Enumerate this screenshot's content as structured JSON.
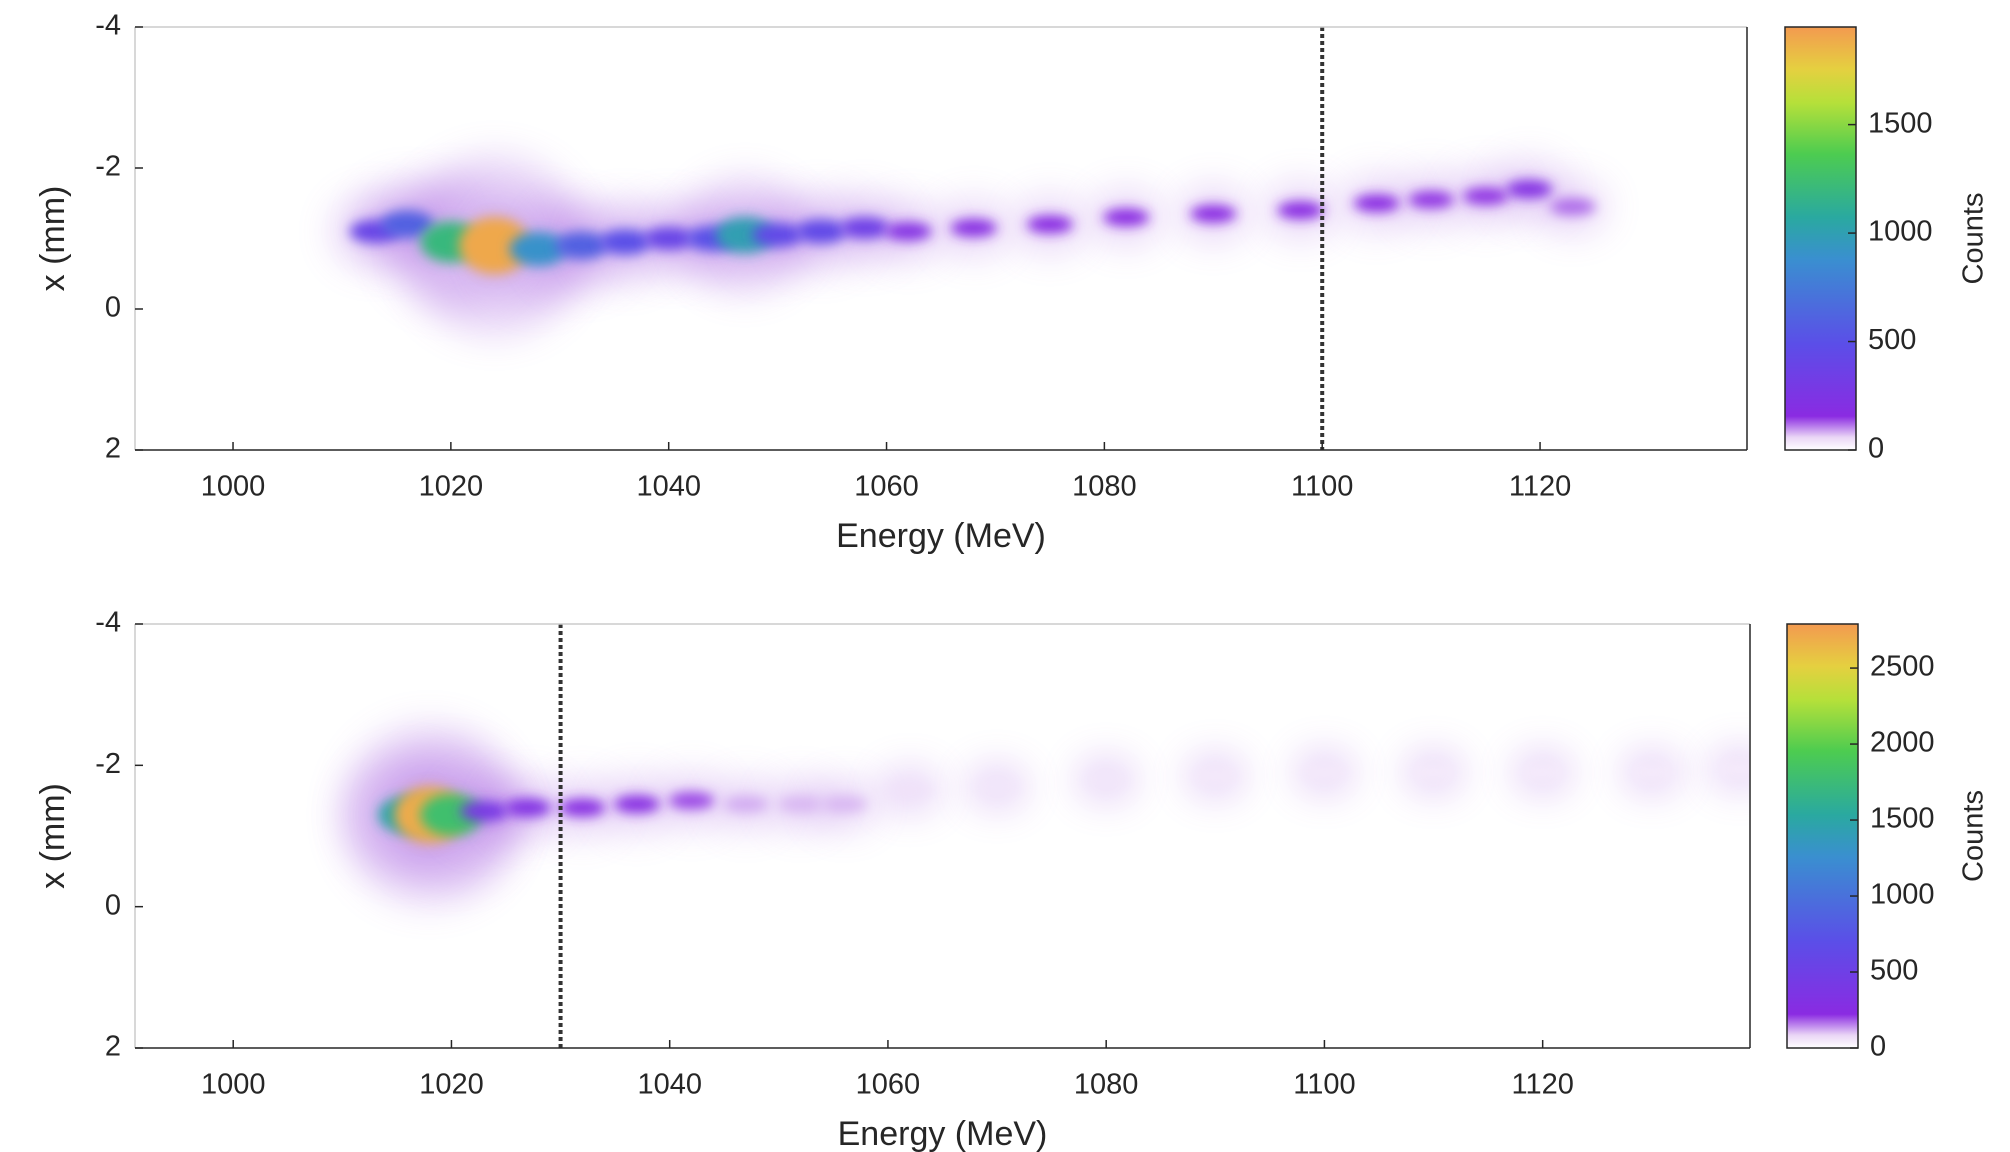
{
  "chart_data": [
    {
      "type": "heatmap",
      "xlabel": "Energy (MeV)",
      "ylabel": "x (mm)",
      "xlim": [
        991,
        1139
      ],
      "ylim": [
        2,
        -4
      ],
      "xticks": [
        1000,
        1020,
        1040,
        1060,
        1080,
        1100,
        1120
      ],
      "yticks": [
        -4,
        -2,
        0,
        2
      ],
      "vline": 1100,
      "x": [
        1013,
        1016,
        1020,
        1024,
        1028,
        1032,
        1036,
        1040,
        1044,
        1047,
        1050,
        1054,
        1058,
        1062,
        1068,
        1075,
        1082,
        1090,
        1098,
        1105,
        1110,
        1115,
        1119,
        1123
      ],
      "y": [
        -1.1,
        -1.2,
        -0.95,
        -0.9,
        -0.85,
        -0.9,
        -0.95,
        -1.0,
        -1.0,
        -1.05,
        -1.05,
        -1.1,
        -1.15,
        -1.1,
        -1.15,
        -1.2,
        -1.3,
        -1.35,
        -1.4,
        -1.5,
        -1.55,
        -1.6,
        -1.7,
        -1.45
      ],
      "values": [
        400,
        600,
        1200,
        1900,
        900,
        600,
        500,
        400,
        500,
        1000,
        450,
        450,
        350,
        200,
        180,
        170,
        160,
        160,
        170,
        160,
        150,
        150,
        200,
        120
      ],
      "colorbar": {
        "label": "Counts",
        "lim": [
          0,
          1950
        ],
        "ticks": [
          0,
          500,
          1000,
          1500
        ]
      }
    },
    {
      "type": "heatmap",
      "xlabel": "Energy (MeV)",
      "ylabel": "x (mm)",
      "xlim": [
        991,
        1139
      ],
      "ylim": [
        2,
        -4
      ],
      "xticks": [
        1000,
        1020,
        1040,
        1060,
        1080,
        1100,
        1120
      ],
      "yticks": [
        -4,
        -2,
        0,
        2
      ],
      "vline": 1030,
      "x": [
        1016,
        1018,
        1020,
        1023,
        1027,
        1032,
        1037,
        1042,
        1047,
        1052,
        1056,
        1062,
        1070,
        1080,
        1090,
        1100,
        1110,
        1120,
        1130,
        1138
      ],
      "y": [
        -1.3,
        -1.3,
        -1.3,
        -1.35,
        -1.4,
        -1.4,
        -1.45,
        -1.5,
        -1.45,
        -1.45,
        -1.45,
        -1.65,
        -1.7,
        -1.8,
        -1.85,
        -1.9,
        -1.9,
        -1.9,
        -1.9,
        -1.95
      ],
      "values": [
        1500,
        2700,
        1800,
        400,
        300,
        250,
        250,
        200,
        120,
        110,
        110,
        60,
        50,
        50,
        45,
        45,
        40,
        40,
        40,
        40
      ],
      "colorbar": {
        "label": "Counts",
        "lim": [
          0,
          2790
        ],
        "ticks": [
          0,
          500,
          1000,
          1500,
          2000,
          2500
        ]
      }
    }
  ]
}
